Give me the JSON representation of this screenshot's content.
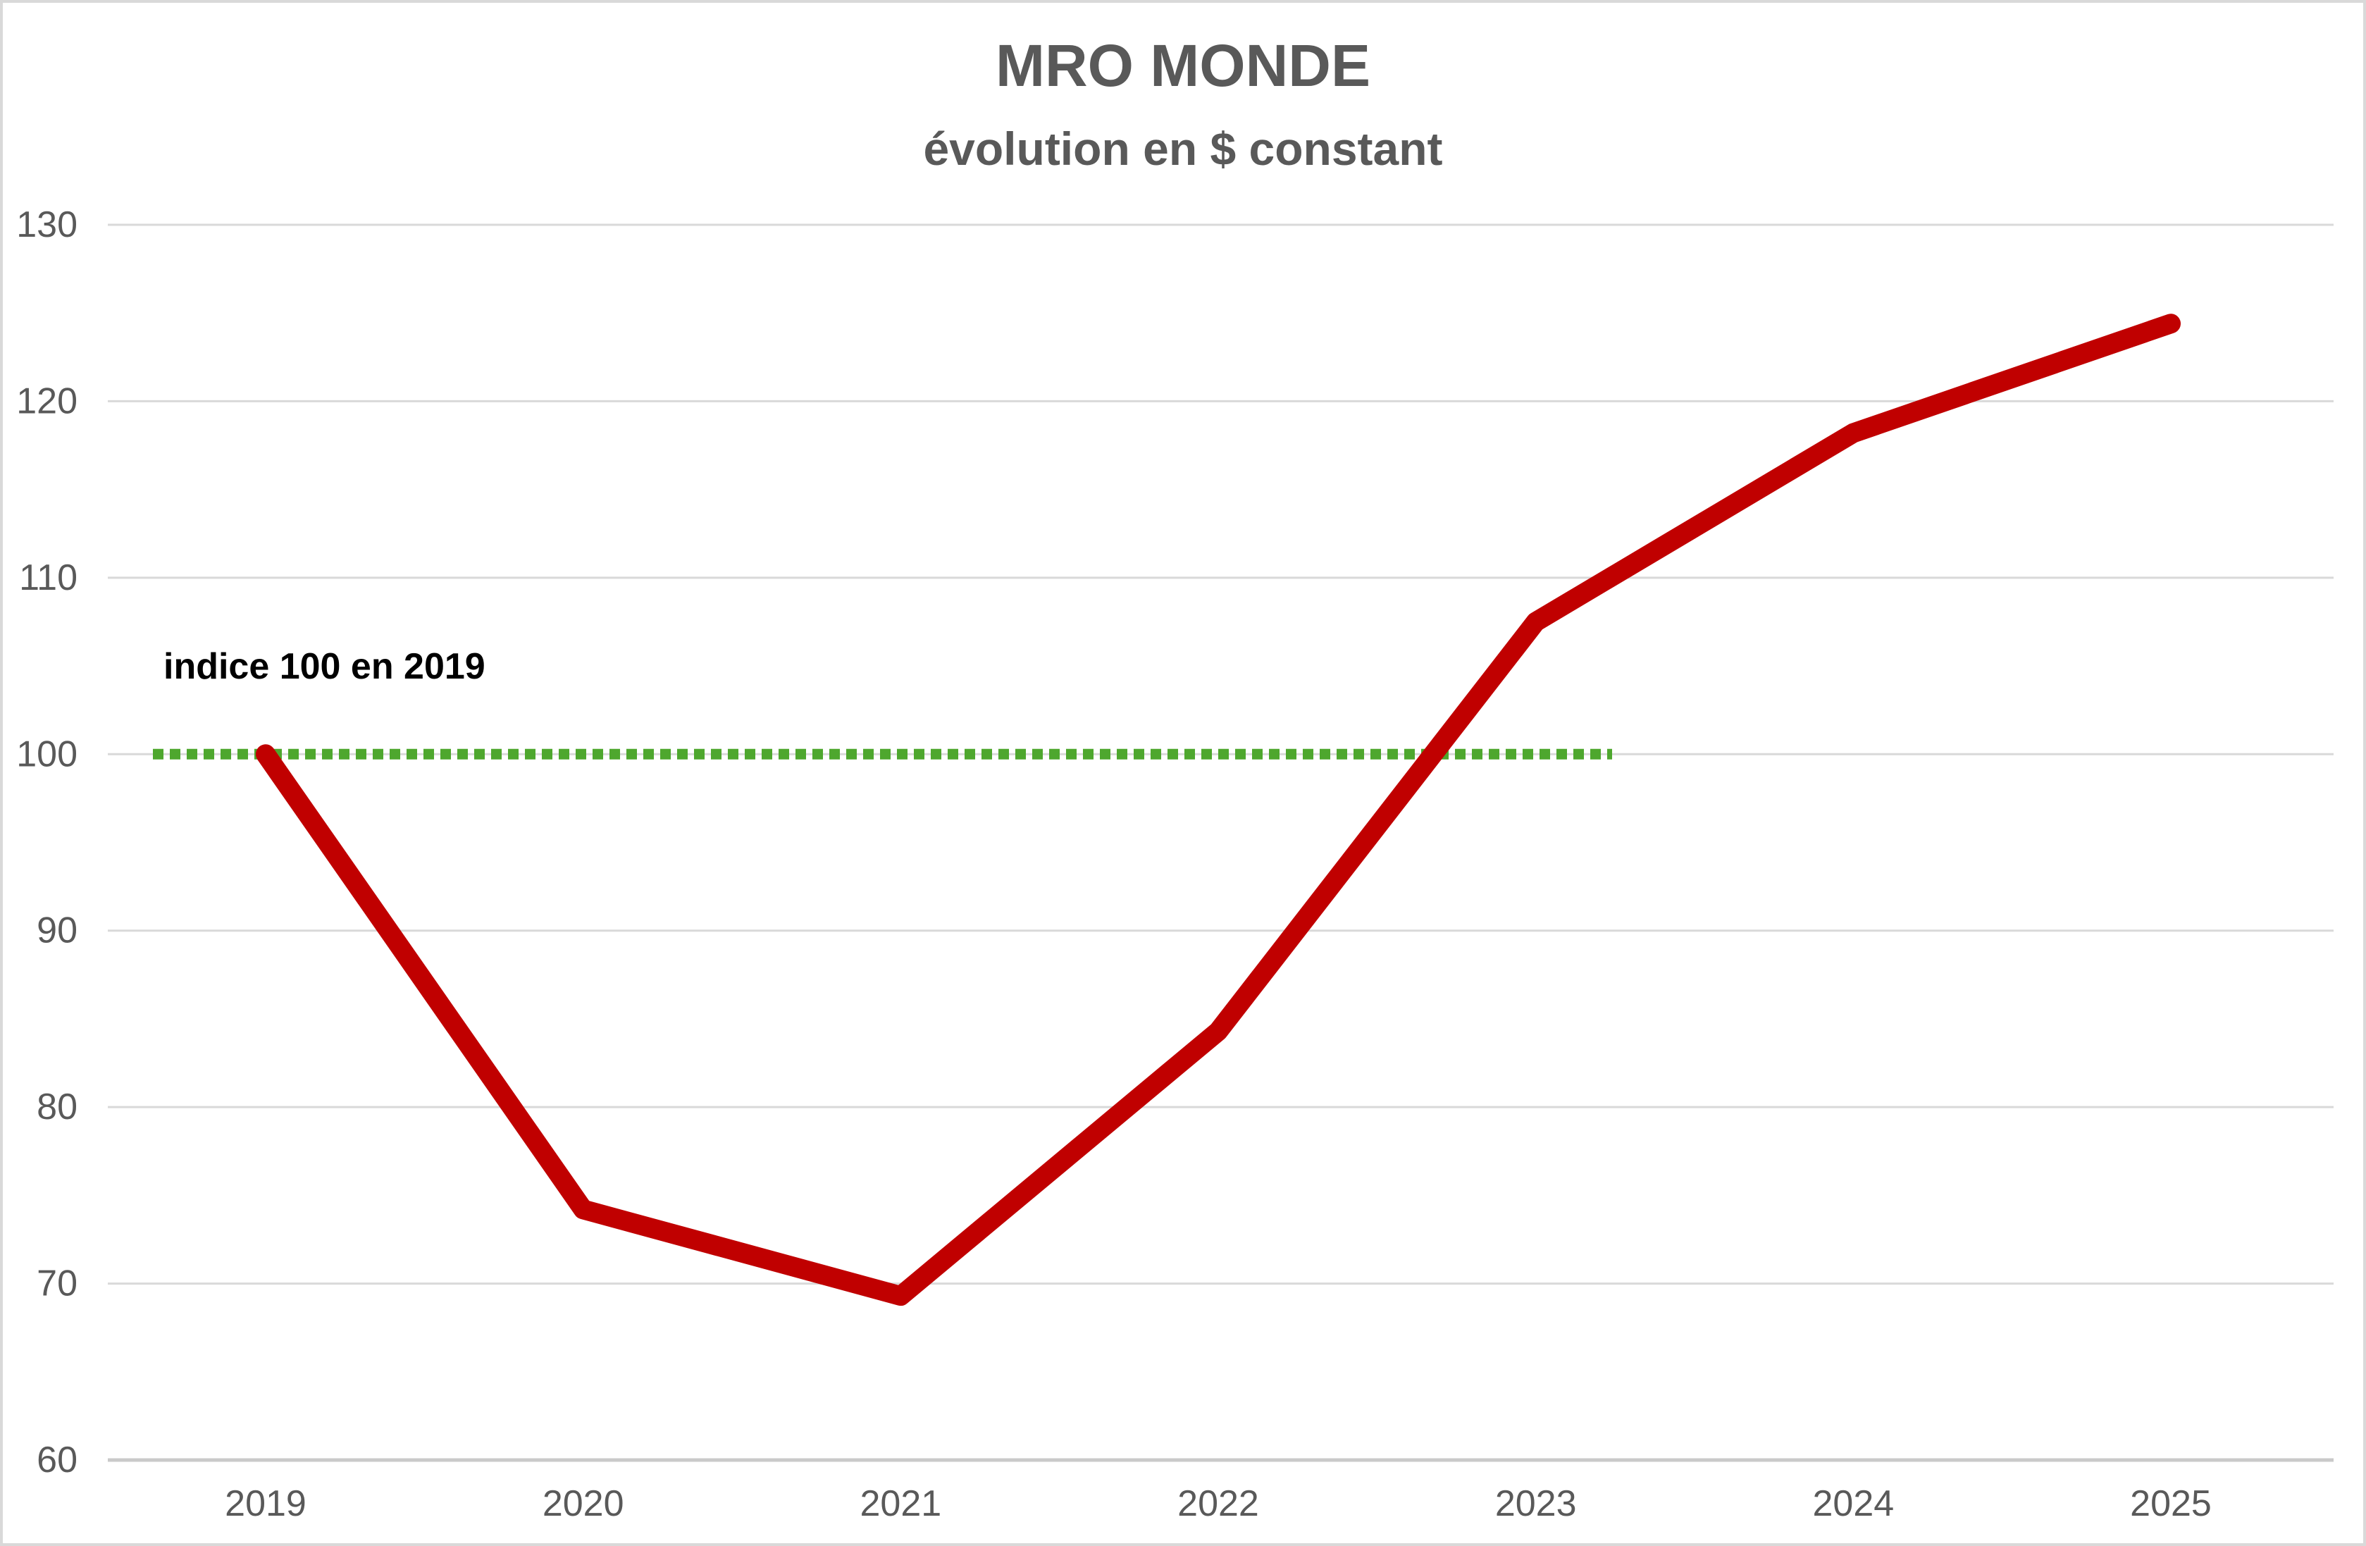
{
  "chart_data": {
    "type": "line",
    "title": "MRO MONDE",
    "subtitle": "évolution en $ constant",
    "categories": [
      "2019",
      "2020",
      "2021",
      "2022",
      "2023",
      "2024",
      "2025"
    ],
    "values": [
      100,
      74.2,
      69.3,
      84.3,
      107.5,
      118.2,
      124.4
    ],
    "line_color": "#C00000",
    "reference_line": {
      "value": 100,
      "label": "indice 100 en 2019",
      "color": "#4EA72E",
      "style": "dotted"
    },
    "ylim": [
      60,
      130
    ],
    "y_ticks": [
      60,
      70,
      80,
      90,
      100,
      110,
      120,
      130
    ],
    "grid": true,
    "legend": "none"
  },
  "styles": {
    "title_color": "#595959",
    "text_color": "#595959",
    "annotation_color": "#000000",
    "gridline_color": "#D9D9D9",
    "axis_color": "#C9C9C9",
    "border_color": "#D9D9D9",
    "background": "#FFFFFF"
  }
}
